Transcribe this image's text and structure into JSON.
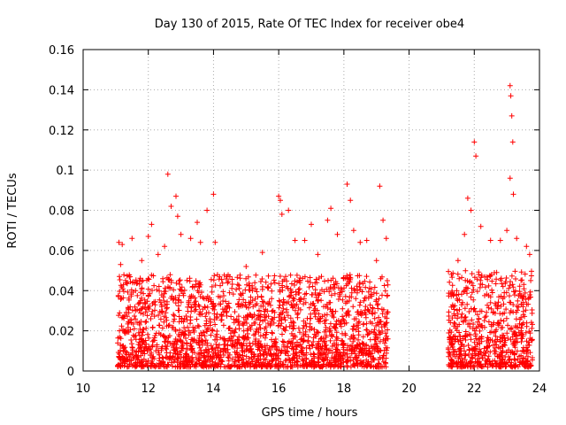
{
  "chart_data": {
    "type": "scatter",
    "title": "Day 130 of 2015, Rate Of TEC Index for receiver obe4",
    "xlabel": "GPS time / hours",
    "ylabel": "ROTI / TECUs",
    "xlim": [
      10,
      24
    ],
    "ylim": [
      0,
      0.16
    ],
    "grid": true,
    "x_ticks": [
      10,
      12,
      14,
      16,
      18,
      20,
      22,
      24
    ],
    "y_ticks": [
      0,
      0.02,
      0.04,
      0.06,
      0.08,
      0.1,
      0.12,
      0.14,
      0.16
    ],
    "x_tick_labels": [
      "10",
      "12",
      "14",
      "16",
      "18",
      "20",
      "22",
      "24"
    ],
    "y_tick_labels": [
      "0",
      "0.02",
      "0.04",
      "0.06",
      "0.08",
      "0.1",
      "0.12",
      "0.14",
      "0.16"
    ],
    "marker": "+",
    "color": "#ff0000",
    "series": [
      {
        "name": "ROTI",
        "points": [
          [
            11.1,
            0.064
          ],
          [
            11.15,
            0.053
          ],
          [
            11.2,
            0.063
          ],
          [
            11.3,
            0.045
          ],
          [
            11.5,
            0.066
          ],
          [
            11.8,
            0.055
          ],
          [
            12.0,
            0.067
          ],
          [
            12.1,
            0.073
          ],
          [
            12.3,
            0.058
          ],
          [
            12.5,
            0.062
          ],
          [
            12.6,
            0.098
          ],
          [
            12.7,
            0.082
          ],
          [
            12.85,
            0.087
          ],
          [
            12.9,
            0.077
          ],
          [
            13.0,
            0.068
          ],
          [
            13.3,
            0.066
          ],
          [
            13.5,
            0.074
          ],
          [
            13.6,
            0.064
          ],
          [
            13.8,
            0.08
          ],
          [
            14.0,
            0.088
          ],
          [
            14.05,
            0.064
          ],
          [
            14.5,
            0.047
          ],
          [
            15.0,
            0.052
          ],
          [
            15.5,
            0.059
          ],
          [
            16.0,
            0.087
          ],
          [
            16.05,
            0.085
          ],
          [
            16.1,
            0.078
          ],
          [
            16.3,
            0.08
          ],
          [
            16.5,
            0.065
          ],
          [
            16.8,
            0.065
          ],
          [
            17.0,
            0.073
          ],
          [
            17.2,
            0.058
          ],
          [
            17.5,
            0.075
          ],
          [
            17.6,
            0.081
          ],
          [
            17.8,
            0.068
          ],
          [
            18.1,
            0.093
          ],
          [
            18.2,
            0.085
          ],
          [
            18.3,
            0.07
          ],
          [
            18.5,
            0.064
          ],
          [
            18.7,
            0.065
          ],
          [
            19.0,
            0.055
          ],
          [
            19.1,
            0.092
          ],
          [
            19.2,
            0.075
          ],
          [
            19.3,
            0.066
          ],
          [
            21.3,
            0.048
          ],
          [
            21.5,
            0.055
          ],
          [
            21.7,
            0.068
          ],
          [
            21.8,
            0.086
          ],
          [
            21.9,
            0.08
          ],
          [
            22.0,
            0.114
          ],
          [
            22.05,
            0.107
          ],
          [
            22.2,
            0.072
          ],
          [
            22.5,
            0.065
          ],
          [
            22.8,
            0.065
          ],
          [
            23.0,
            0.07
          ],
          [
            23.1,
            0.142
          ],
          [
            23.12,
            0.137
          ],
          [
            23.15,
            0.127
          ],
          [
            23.18,
            0.114
          ],
          [
            23.1,
            0.096
          ],
          [
            23.2,
            0.088
          ],
          [
            23.3,
            0.066
          ],
          [
            23.6,
            0.062
          ],
          [
            23.7,
            0.058
          ]
        ]
      }
    ],
    "density_bands": [
      {
        "x_start": 11.05,
        "x_end": 19.35,
        "y_low": 0.002,
        "y_high": 0.048
      },
      {
        "x_start": 21.2,
        "x_end": 23.8,
        "y_low": 0.002,
        "y_high": 0.05
      }
    ]
  }
}
